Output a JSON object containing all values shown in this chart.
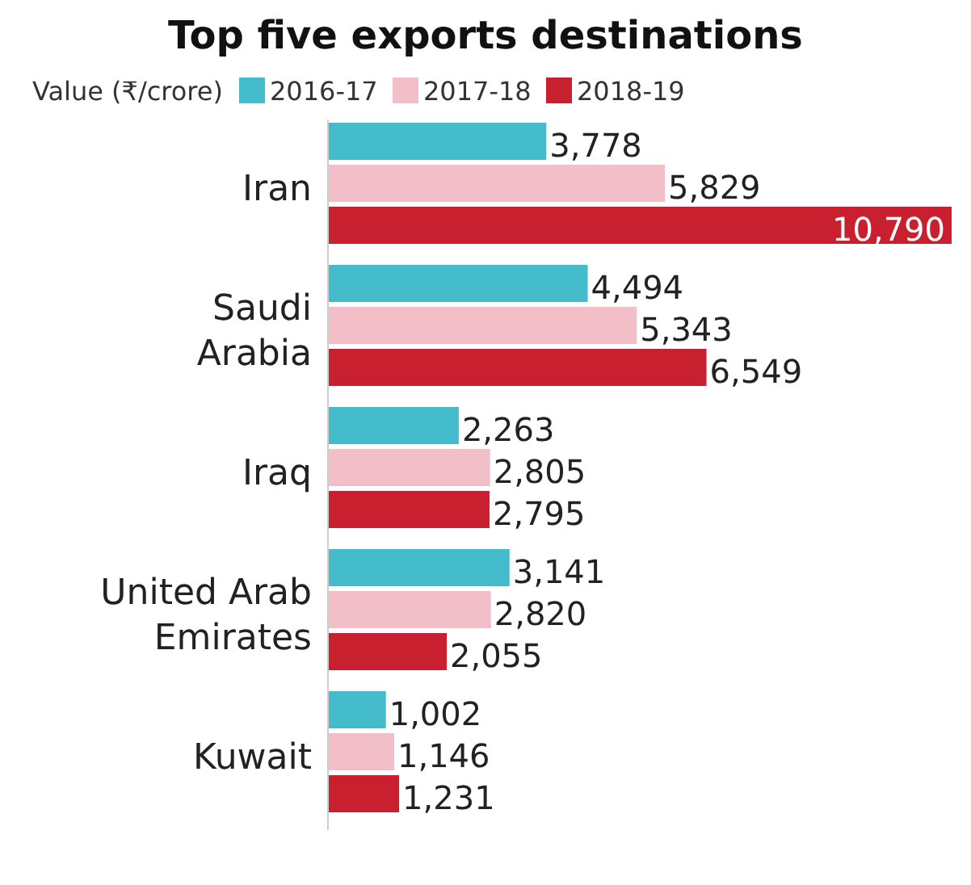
{
  "chart_data": {
    "type": "bar",
    "orientation": "horizontal",
    "title": "Top five exports destinations",
    "legend_title": "Value (₹/crore)",
    "legend": "top",
    "categories": [
      "Iran",
      "Saudi Arabia",
      "Iraq",
      "United Arab Emirates",
      "Kuwait"
    ],
    "series": [
      {
        "name": "2016-17",
        "color": "#45bccb",
        "values": [
          3778,
          4494,
          2263,
          3141,
          1002
        ],
        "value_labels": [
          "3,778",
          "4,494",
          "2,263",
          "3,141",
          "1,002"
        ]
      },
      {
        "name": "2017-18",
        "color": "#f2bfc8",
        "values": [
          5829,
          5343,
          2805,
          2820,
          1146
        ],
        "value_labels": [
          "5,829",
          "5,343",
          "2,805",
          "2,820",
          "1,146"
        ]
      },
      {
        "name": "2018-19",
        "color": "#c8202e",
        "values": [
          10790,
          6549,
          2795,
          2055,
          1231
        ],
        "value_labels": [
          "10,790",
          "6,549",
          "2,795",
          "2,055",
          "1,231"
        ]
      }
    ]
  }
}
